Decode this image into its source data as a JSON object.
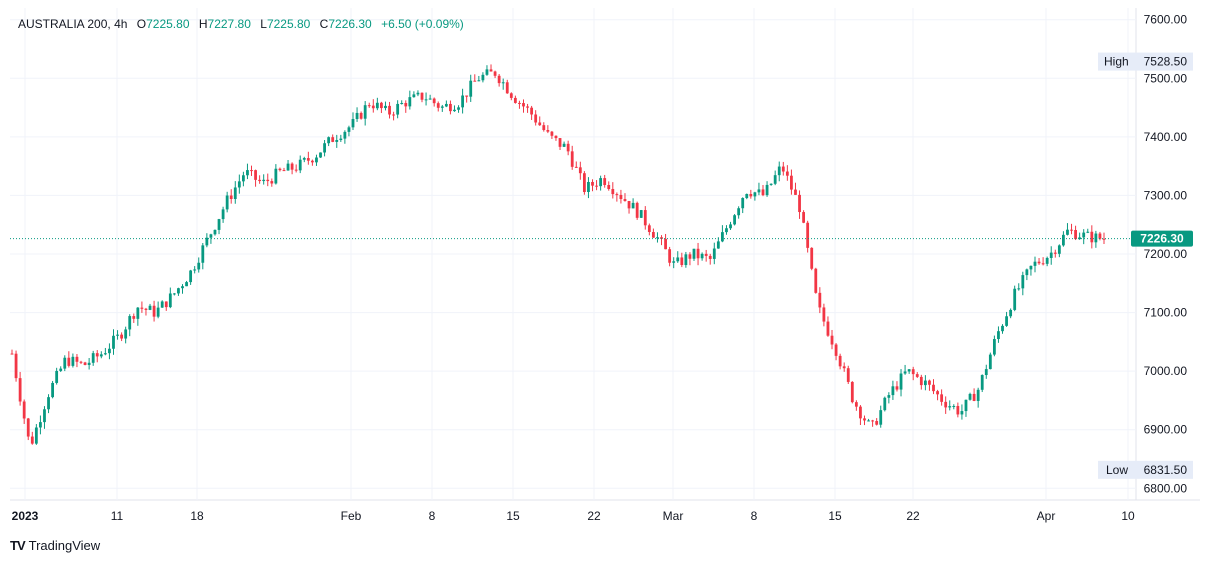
{
  "legend": {
    "symbol": "AUSTRALIA 200",
    "interval": "4h",
    "open_label": "O",
    "open": "7225.80",
    "high_label": "H",
    "high": "7227.80",
    "low_label": "L",
    "low": "7225.80",
    "close_label": "C",
    "close": "7226.30",
    "change": "+6.50 (+0.09%)"
  },
  "brand": {
    "logo": "TV",
    "name": "TradingView"
  },
  "colors": {
    "up": "#089981",
    "down": "#f23645",
    "grid": "#f0f3fa",
    "text": "#131722",
    "price_tag": "#089981"
  },
  "chart_data": {
    "type": "candlestick",
    "ylim": [
      6780,
      7620
    ],
    "y_ticks": [
      "7600.00",
      "7500.00",
      "7400.00",
      "7300.00",
      "7200.00",
      "7100.00",
      "7000.00",
      "6900.00",
      "6800.00"
    ],
    "x_ticks": [
      "2023",
      "11",
      "18",
      "Feb",
      "8",
      "15",
      "22",
      "Mar",
      "8",
      "15",
      "22",
      "Apr",
      "10"
    ],
    "high_marker": {
      "label": "High",
      "value": "7528.50"
    },
    "low_marker": {
      "label": "Low",
      "value": "6831.50"
    },
    "last_price": "7226.30",
    "close_series": [
      7030,
      6870,
      6960,
      7020,
      7010,
      7030,
      7060,
      7110,
      7100,
      7130,
      7170,
      7230,
      7290,
      7340,
      7320,
      7340,
      7350,
      7370,
      7400,
      7420,
      7460,
      7440,
      7460,
      7470,
      7450,
      7460,
      7500,
      7510,
      7470,
      7440,
      7400,
      7380,
      7310,
      7330,
      7300,
      7270,
      7230,
      7180,
      7200,
      7190,
      7250,
      7310,
      7300,
      7350,
      7280,
      7110,
      7040,
      6950,
      6900,
      6960,
      7000,
      6980,
      6950,
      6930,
      6970,
      7060,
      7130,
      7180,
      7200,
      7240,
      7230,
      7226
    ]
  }
}
